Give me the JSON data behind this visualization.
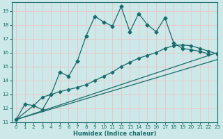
{
  "xlabel": "Humidex (Indice chaleur)",
  "bg_color": "#cce8e8",
  "grid_color": "#e8c8c8",
  "line_color": "#1a6b6b",
  "xlim": [
    -0.5,
    23
  ],
  "ylim": [
    11,
    19.6
  ],
  "xticks": [
    0,
    1,
    2,
    3,
    4,
    5,
    6,
    7,
    8,
    9,
    10,
    11,
    12,
    13,
    14,
    15,
    16,
    17,
    18,
    19,
    20,
    21,
    22,
    23
  ],
  "yticks": [
    11,
    12,
    13,
    14,
    15,
    16,
    17,
    18,
    19
  ],
  "line1_x": [
    0,
    1,
    2,
    3,
    4,
    5,
    6,
    7,
    8,
    9,
    10,
    11,
    12,
    13,
    14,
    15,
    16,
    17,
    18,
    19,
    20,
    21,
    22
  ],
  "line1_y": [
    11.2,
    12.3,
    12.2,
    11.9,
    13.0,
    14.6,
    14.3,
    15.4,
    17.2,
    18.6,
    18.2,
    17.9,
    19.3,
    17.5,
    18.8,
    18.0,
    17.5,
    18.5,
    16.7,
    16.3,
    16.2,
    16.1,
    15.9
  ],
  "line2_x": [
    0,
    2,
    3,
    4,
    5,
    6,
    7,
    8,
    9,
    10,
    11,
    12,
    13,
    14,
    15,
    16,
    17,
    18,
    19,
    20,
    21,
    22,
    23
  ],
  "line2_y": [
    11.2,
    12.2,
    12.8,
    13.0,
    13.2,
    13.35,
    13.5,
    13.7,
    14.0,
    14.3,
    14.6,
    15.0,
    15.3,
    15.6,
    15.8,
    16.0,
    16.3,
    16.5,
    16.55,
    16.5,
    16.3,
    16.1,
    15.9
  ],
  "line3_x": [
    0,
    23
  ],
  "line3_y": [
    11.2,
    16.0
  ],
  "line4_x": [
    0,
    23
  ],
  "line4_y": [
    11.2,
    15.5
  ]
}
